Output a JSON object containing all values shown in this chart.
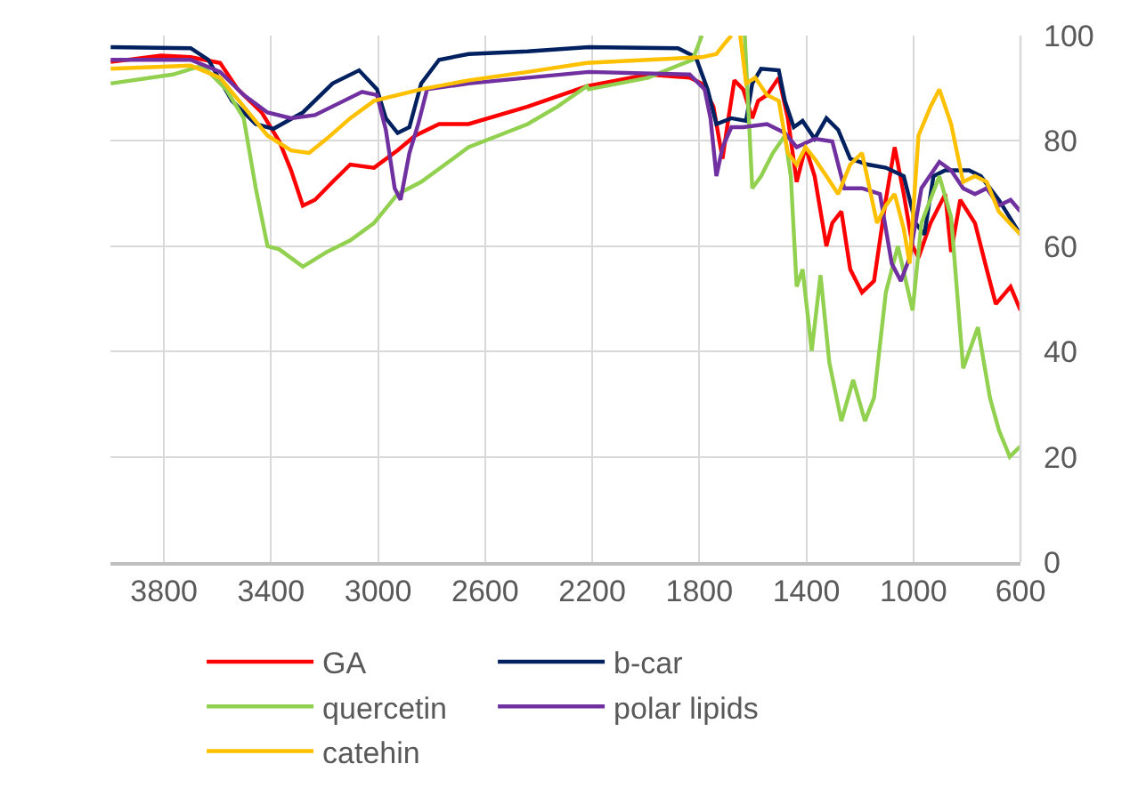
{
  "chart_data": {
    "type": "line",
    "xlim": [
      4000,
      600
    ],
    "xticks": [
      3800,
      3400,
      3000,
      2600,
      2200,
      1800,
      1400,
      1000,
      600
    ],
    "ylim": [
      0,
      100
    ],
    "yticks": [
      0,
      20,
      40,
      60,
      80,
      100
    ],
    "grid": true,
    "legend": "bottom",
    "marker": "none",
    "line_style": "solid",
    "series": [
      {
        "name": "GA",
        "color": "#ff0000",
        "x": [
          3999,
          3811,
          3700,
          3590,
          3524,
          3435,
          3369,
          3325,
          3281,
          3236,
          3170,
          3104,
          3015,
          2927,
          2861,
          2772,
          2662,
          2441,
          2220,
          1991,
          1836,
          1791,
          1747,
          1713,
          1691,
          1669,
          1636,
          1602,
          1580,
          1547,
          1503,
          1469,
          1436,
          1403,
          1369,
          1325,
          1303,
          1269,
          1236,
          1192,
          1147,
          1103,
          1070,
          1036,
          1003,
          981,
          936,
          881,
          859,
          825,
          770,
          726,
          692,
          637,
          600
        ],
        "values": [
          95,
          96.2,
          95.9,
          94.8,
          89.8,
          85.4,
          79.9,
          74.4,
          67.7,
          68.8,
          72.2,
          75.5,
          74.9,
          78.2,
          81,
          83.2,
          83.2,
          86.5,
          90.4,
          92.6,
          92,
          90.9,
          86.5,
          76.6,
          84.3,
          91.5,
          89.8,
          84.3,
          87.6,
          88.7,
          92,
          84.3,
          72.2,
          78.8,
          73.3,
          60,
          64.4,
          66.6,
          55.6,
          51.2,
          53.4,
          68.8,
          78.8,
          69.9,
          60,
          57.8,
          64.4,
          69.9,
          58.9,
          68.8,
          64.4,
          55.6,
          49,
          52.3,
          47.8
        ]
      },
      {
        "name": "b-car",
        "color": "#002060",
        "x": [
          3999,
          3700,
          3634,
          3546,
          3457,
          3391,
          3281,
          3170,
          3071,
          3004,
          2971,
          2927,
          2883,
          2839,
          2772,
          2662,
          2441,
          2213,
          1880,
          1813,
          1769,
          1736,
          1680,
          1625,
          1602,
          1569,
          1503,
          1480,
          1447,
          1414,
          1369,
          1325,
          1281,
          1236,
          1170,
          1103,
          1036,
          992,
          959,
          925,
          881,
          792,
          748,
          681,
          600
        ],
        "values": [
          97.8,
          97.6,
          95.4,
          87.6,
          83.2,
          82.3,
          85.4,
          90.9,
          93.4,
          89.8,
          84.3,
          81.5,
          82.6,
          90.9,
          95.4,
          96.5,
          97,
          97.8,
          97.6,
          95.9,
          89.8,
          83.2,
          84.3,
          83.8,
          90.9,
          93.7,
          93.4,
          87.6,
          82.6,
          83.8,
          80.4,
          84.3,
          82.1,
          76.6,
          75.5,
          74.9,
          73.3,
          64.4,
          62.2,
          73.3,
          74.4,
          74.4,
          73.3,
          68.8,
          62.2
        ]
      },
      {
        "name": "quercetin",
        "color": "#92d050",
        "x": [
          3999,
          3767,
          3656,
          3568,
          3502,
          3457,
          3413,
          3369,
          3281,
          3192,
          3104,
          3015,
          2927,
          2839,
          2750,
          2662,
          2551,
          2441,
          2330,
          2220,
          2213,
          1991,
          1880,
          1825,
          1790,
          1700,
          1630,
          1602,
          1569,
          1525,
          1480,
          1458,
          1436,
          1414,
          1380,
          1347,
          1314,
          1269,
          1225,
          1181,
          1147,
          1103,
          1058,
          1003,
          970,
          903,
          859,
          814,
          759,
          714,
          680,
          640,
          620,
          600
        ],
        "values": [
          90.9,
          92.6,
          94.3,
          89.8,
          84.3,
          71,
          60,
          59.4,
          56.1,
          58.9,
          61.1,
          64.4,
          69.9,
          72.2,
          75.5,
          78.8,
          81,
          83.2,
          86.5,
          90.4,
          89.8,
          92,
          94.3,
          95.4,
          100,
          null,
          100,
          71,
          73.3,
          77.7,
          81,
          73.3,
          52.3,
          55.6,
          40.1,
          54.5,
          37.9,
          26.8,
          34.6,
          26.8,
          31.2,
          51.2,
          60,
          47.8,
          64.4,
          73.3,
          65.5,
          36.8,
          44.6,
          31.2,
          25,
          20,
          21,
          22
        ]
      },
      {
        "name": "polar lipids",
        "color": "#7030a0",
        "x": [
          3999,
          3700,
          3590,
          3502,
          3413,
          3325,
          3236,
          3148,
          3060,
          3004,
          2971,
          2938,
          2916,
          2883,
          2850,
          2817,
          2662,
          2441,
          2213,
          1836,
          1780,
          1758,
          1736,
          1713,
          1680,
          1636,
          1547,
          1480,
          1436,
          1369,
          1303,
          1258,
          1192,
          1125,
          1081,
          1047,
          1014,
          970,
          903,
          859,
          814,
          770,
          726,
          681,
          637,
          600
        ],
        "values": [
          95.4,
          95.4,
          93.1,
          88.7,
          85.4,
          84.3,
          84.9,
          87.1,
          89.3,
          88.7,
          82.1,
          71,
          68.8,
          77.7,
          83.2,
          89.8,
          90.9,
          92,
          93.1,
          92.6,
          89.8,
          84.3,
          73.3,
          78.8,
          82.6,
          82.6,
          83.2,
          81.5,
          78.8,
          80.4,
          79.9,
          71,
          71,
          69.9,
          56.7,
          53.4,
          57.8,
          71,
          76,
          74.4,
          71,
          69.9,
          71,
          67.7,
          68.8,
          66.6
        ]
      },
      {
        "name": "catehin",
        "color": "#ffc000",
        "x": [
          3999,
          3700,
          3590,
          3502,
          3413,
          3325,
          3258,
          3192,
          3104,
          3015,
          2927,
          2839,
          2662,
          2441,
          2220,
          1991,
          1791,
          1736,
          1702,
          1680,
          1660,
          1647,
          1625,
          1591,
          1547,
          1503,
          1469,
          1436,
          1403,
          1369,
          1325,
          1281,
          1236,
          1192,
          1159,
          1136,
          1103,
          1070,
          1036,
          1014,
          981,
          936,
          903,
          859,
          814,
          770,
          726,
          681,
          600
        ],
        "values": [
          93.7,
          94.3,
          92,
          86.5,
          81,
          78.2,
          77.7,
          80.4,
          84.3,
          87.6,
          88.7,
          89.8,
          91.5,
          93.1,
          94.8,
          95.4,
          95.9,
          96.5,
          98.7,
          100,
          null,
          100,
          90.9,
          92,
          88.7,
          87.6,
          77.7,
          75.5,
          78.8,
          76.6,
          73.3,
          69.9,
          75.5,
          77.7,
          69.9,
          64.4,
          67.7,
          69.9,
          63.3,
          56.7,
          81,
          86.5,
          89.8,
          83.2,
          72.2,
          73.3,
          72.2,
          66.6,
          62.2
        ]
      }
    ]
  }
}
